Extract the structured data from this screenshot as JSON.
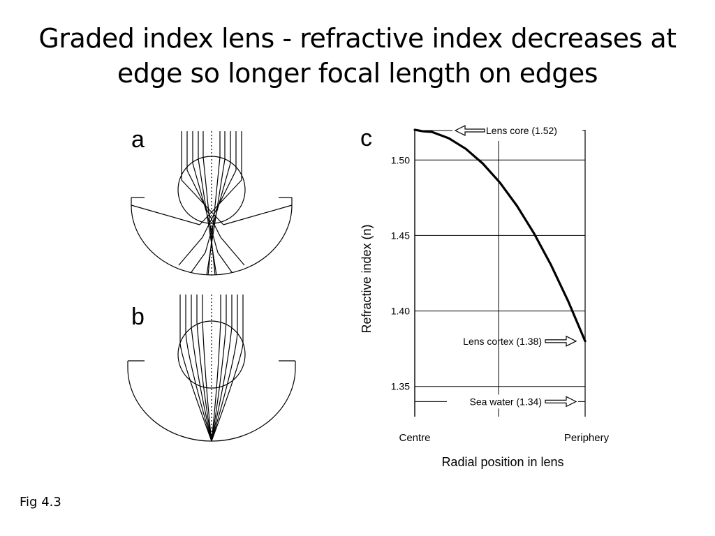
{
  "slide": {
    "title_line1": "Graded index lens - refractive index decreases at",
    "title_line2": "edge so longer focal length on edges",
    "caption": "Fig 4.3"
  },
  "panels": {
    "a_label": "a",
    "b_label": "b",
    "c_label": "c"
  },
  "chart_data": {
    "type": "line",
    "ylabel": "Refractive index (n)",
    "xlabel": "Radial position in lens",
    "x_tick_labels": [
      "Centre",
      "Periphery"
    ],
    "y_ticks": [
      1.35,
      1.4,
      1.45,
      1.5
    ],
    "y_tick_labels": [
      "1.35",
      "1.40",
      "1.45",
      "1.50"
    ],
    "ylim": [
      1.33,
      1.52
    ],
    "xlim": [
      0,
      1
    ],
    "grid": true,
    "series": [
      {
        "x": [
          0,
          0.05,
          0.1,
          0.2,
          0.3,
          0.4,
          0.5,
          0.6,
          0.7,
          0.8,
          0.9,
          1.0
        ],
        "values": [
          1.52,
          1.519,
          1.5186,
          1.5144,
          1.5074,
          1.4976,
          1.485,
          1.4696,
          1.4514,
          1.4304,
          1.4066,
          1.38
        ]
      }
    ],
    "annotations": [
      {
        "text": "Lens core (1.52)",
        "y": 1.52,
        "arrow": "left"
      },
      {
        "text": "Lens cortex (1.38)",
        "y": 1.38,
        "arrow": "right"
      },
      {
        "text": "Sea water (1.34)",
        "y": 1.34,
        "arrow": "right"
      }
    ]
  }
}
